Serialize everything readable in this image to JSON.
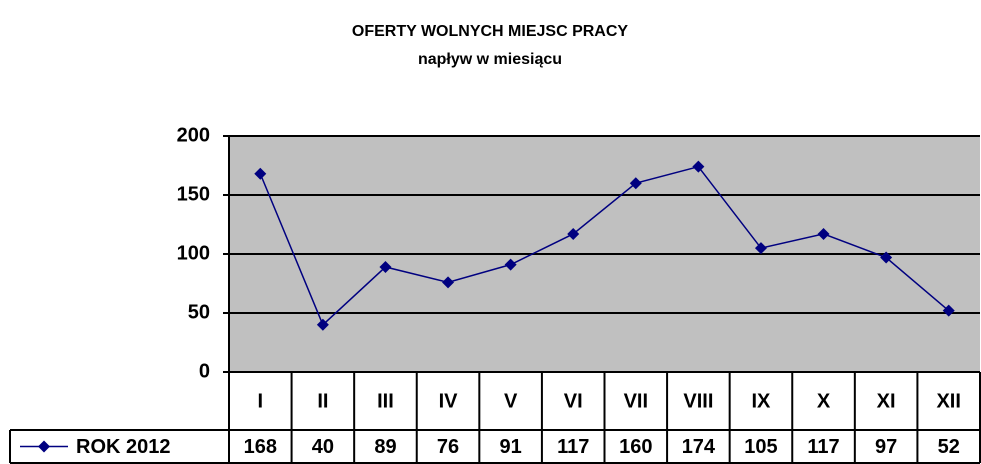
{
  "chart_data": {
    "type": "line",
    "title": "OFERTY WOLNYCH MIEJSC PRACY",
    "subtitle": "napływ w miesiącu",
    "categories": [
      "I",
      "II",
      "III",
      "IV",
      "V",
      "VI",
      "VII",
      "VIII",
      "IX",
      "X",
      "XI",
      "XII"
    ],
    "series": [
      {
        "name": "ROK 2012",
        "color": "#000080",
        "values": [
          168,
          40,
          89,
          76,
          91,
          117,
          160,
          174,
          105,
          117,
          97,
          52
        ]
      }
    ],
    "ylim": [
      0,
      200
    ],
    "yticks": [
      0,
      50,
      100,
      150,
      200
    ],
    "grid": true
  }
}
